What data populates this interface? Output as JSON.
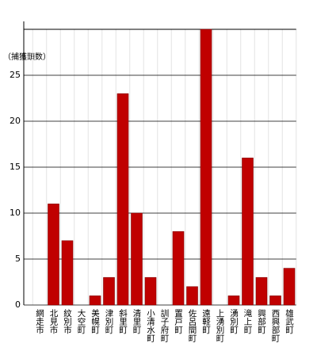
{
  "chart_data": {
    "type": "bar",
    "y_label": "（捕獲頭数）",
    "categories": [
      "網走市",
      "北見市",
      "紋別市",
      "大空町",
      "美幌町",
      "津別町",
      "斜里町",
      "清里町",
      "小清水町",
      "訓子府町",
      "置戸町",
      "佐呂間町",
      "遠軽町",
      "上湧別町",
      "湧別町",
      "滝上町",
      "興部町",
      "西興部町",
      "雄武町"
    ],
    "values": [
      0,
      11,
      7,
      0,
      1,
      3,
      23,
      10,
      3,
      0,
      8,
      2,
      30,
      0,
      1,
      16,
      3,
      1,
      4
    ],
    "color": "#c00000",
    "ylim": [
      0,
      30
    ],
    "yticks": [
      0,
      5,
      10,
      15,
      20,
      25
    ],
    "grid": true
  }
}
